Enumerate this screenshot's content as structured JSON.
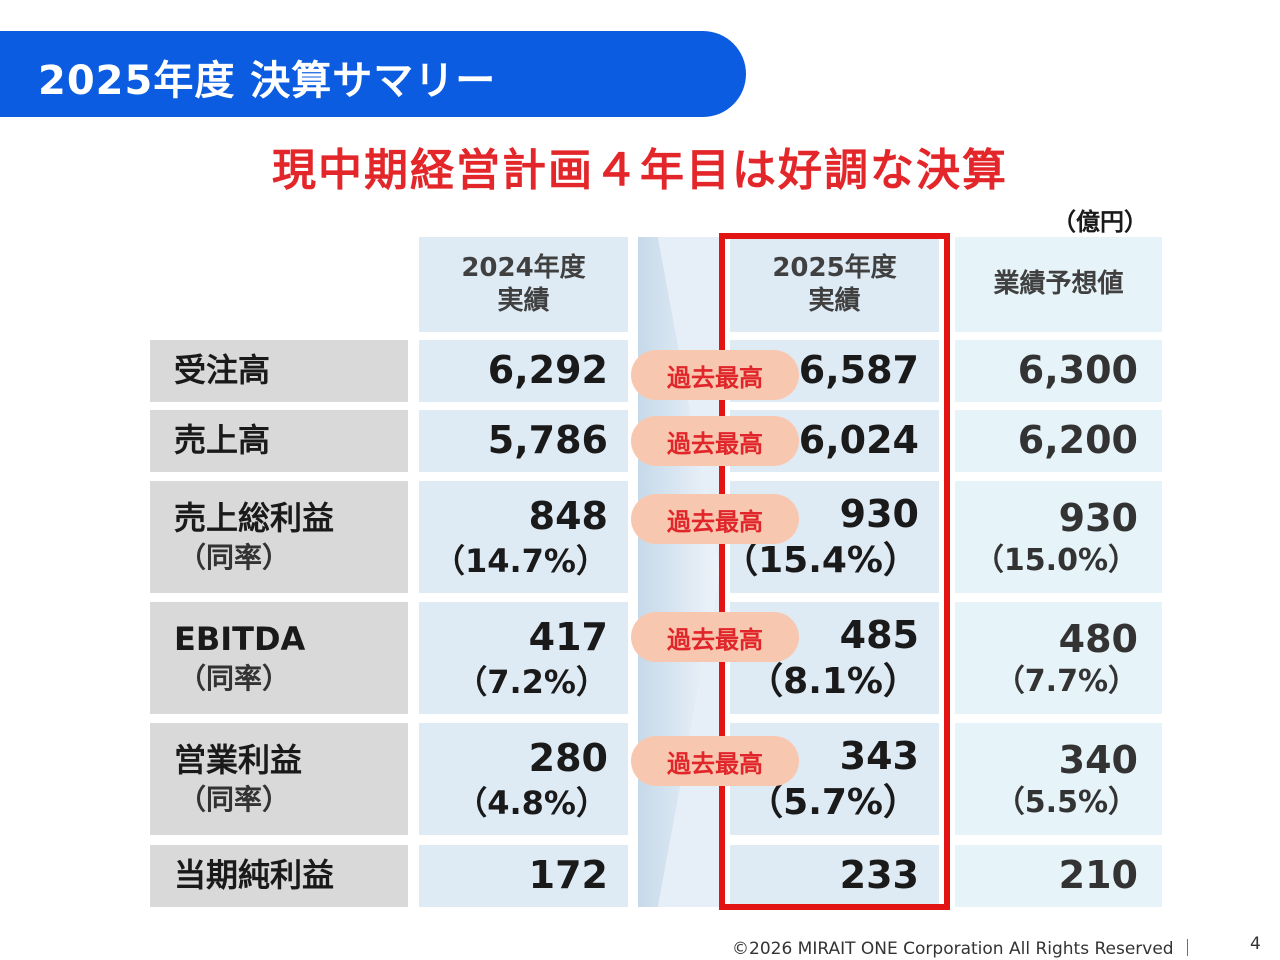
{
  "slide": {
    "banner_title": "2025年度 決算サマリー",
    "headline": "現中期経営計画４年目は好調な決算",
    "unit": "（億円）"
  },
  "table": {
    "headers": {
      "prev_line1": "2024年度",
      "prev_line2": "実績",
      "curr_line1": "2025年度",
      "curr_line2": "実績",
      "forecast": "業績予想値"
    },
    "badge_label": "過去最高",
    "rows": [
      {
        "label": "受注高",
        "prev": "6,292",
        "curr": "6,587",
        "forecast": "6,300"
      },
      {
        "label": "売上高",
        "prev": "5,786",
        "curr": "6,024",
        "forecast": "6,200"
      },
      {
        "label": "売上総利益",
        "sub_label": "（同率）",
        "prev": "848",
        "prev_rate": "（14.7%）",
        "curr": "930",
        "curr_rate": "（15.4%）",
        "forecast": "930",
        "forecast_rate": "（15.0%）"
      },
      {
        "label": "EBITDA",
        "sub_label": "（同率）",
        "prev": "417",
        "prev_rate": "（7.2%）",
        "curr": "485",
        "curr_rate": "（8.1%）",
        "forecast": "480",
        "forecast_rate": "（7.7%）"
      },
      {
        "label": "営業利益",
        "sub_label": "（同率）",
        "prev": "280",
        "prev_rate": "（4.8%）",
        "curr": "343",
        "curr_rate": "（5.7%）",
        "forecast": "340",
        "forecast_rate": "（5.5%）"
      },
      {
        "label": "当期純利益",
        "prev": "172",
        "curr": "233",
        "forecast": "210"
      }
    ]
  },
  "footer": {
    "copyright": "©2026 MIRAIT ONE Corporation All Rights Reserved ｜",
    "page_number": "4"
  },
  "colors": {
    "banner": "#0b5ce0",
    "headline": "#e3262a",
    "highlight_border": "#e31414",
    "badge_fill": "#f8c7b0",
    "label_bg": "#d9d9d9",
    "value_bg": "#deebf5"
  }
}
